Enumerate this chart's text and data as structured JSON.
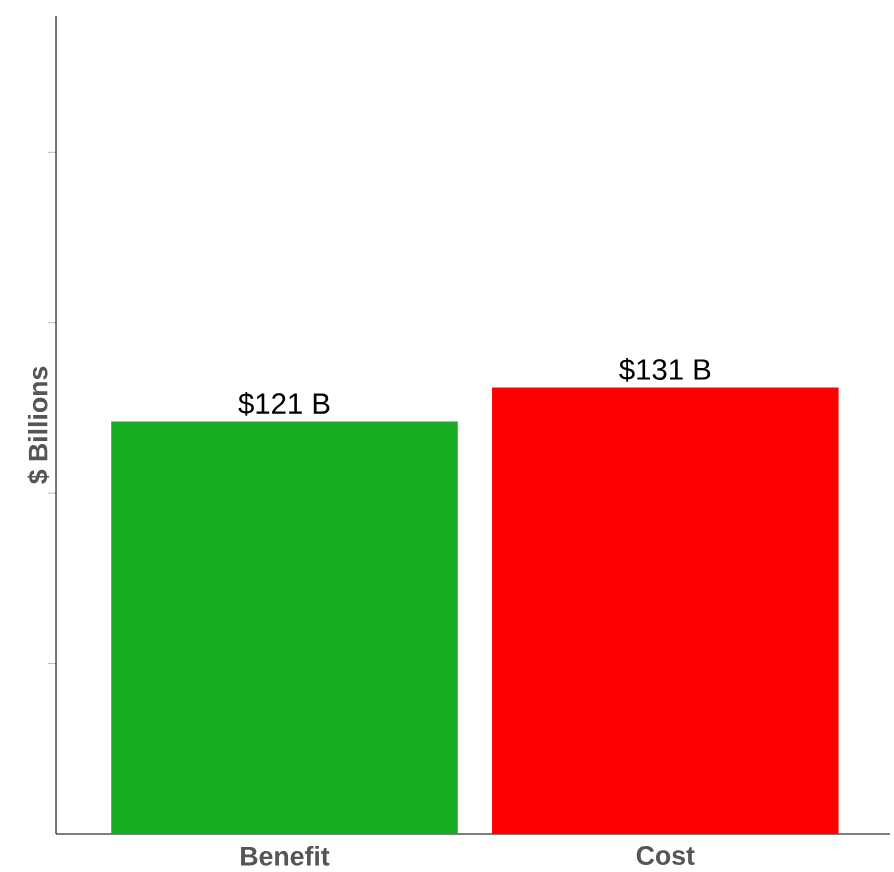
{
  "chart_data": {
    "type": "bar",
    "ylabel": "$ Billions",
    "categories": [
      "Benefit",
      "Cost"
    ],
    "values": [
      121,
      131
    ],
    "colors": [
      "#16ad22",
      "#ff0000"
    ],
    "value_labels": [
      "$121 B",
      "$131 B"
    ],
    "ylim": [
      0,
      240
    ],
    "yticks": [
      {
        "value": 50,
        "label": null
      },
      {
        "value": 100,
        "label": null
      },
      {
        "value": 150,
        "label": null
      },
      {
        "value": 200,
        "label": null
      }
    ],
    "tick_labels": "x"
  }
}
